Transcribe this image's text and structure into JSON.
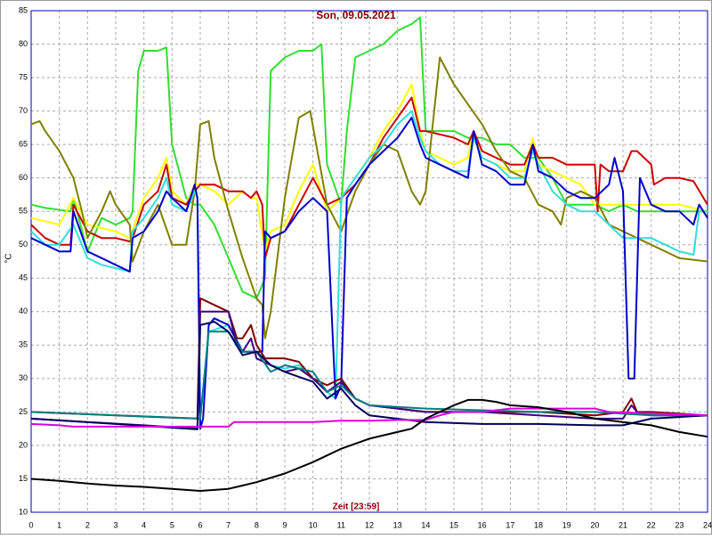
{
  "chart_data": {
    "type": "line",
    "title": "Son, 09.05.2021",
    "xlabel": "Zeit [23:59]",
    "ylabel": "°C",
    "xlim": [
      0,
      24
    ],
    "ylim": [
      10,
      85
    ],
    "grid": true,
    "xticks": [
      0,
      1,
      2,
      3,
      4,
      5,
      6,
      7,
      8,
      9,
      10,
      11,
      12,
      13,
      14,
      15,
      16,
      17,
      18,
      19,
      20,
      21,
      22,
      23,
      24
    ],
    "yticks": [
      10,
      15,
      20,
      25,
      30,
      35,
      40,
      45,
      50,
      55,
      60,
      65,
      70,
      75,
      80,
      85
    ],
    "series": [
      {
        "color": "#33dd33",
        "x": [
          0,
          0.5,
          1.4,
          1.5,
          2,
          2.5,
          3,
          3.5,
          3.6,
          3.8,
          4,
          4.5,
          4.8,
          5,
          5.5,
          5.8,
          6,
          6.5,
          7,
          7.5,
          8,
          8.3,
          8.5,
          9,
          9.5,
          10,
          10.3,
          10.5,
          11,
          11.2,
          11.5,
          12,
          12.5,
          13,
          13.5,
          13.8,
          14,
          14.5,
          15,
          15.5,
          16,
          16.5,
          17,
          17.5,
          18,
          18.5,
          19,
          19.5,
          20,
          20.5,
          21,
          21.5,
          22,
          22.5,
          23,
          23.5,
          24
        ],
        "values": [
          56,
          55.5,
          55,
          57,
          49,
          54,
          53,
          54,
          55,
          76,
          79,
          79,
          79.5,
          65,
          57,
          56,
          56,
          53,
          48,
          43,
          42,
          45,
          76,
          78,
          79,
          79,
          80,
          62,
          56,
          67,
          78,
          79,
          80,
          82,
          83,
          84,
          67,
          67,
          67,
          66,
          66,
          65,
          65,
          63,
          63,
          60,
          56,
          56,
          56,
          55,
          56,
          55,
          55,
          55,
          55,
          55,
          55
        ]
      },
      {
        "color": "#ffff00",
        "x": [
          0,
          1,
          1.5,
          2,
          3,
          3.5,
          4,
          4.5,
          4.8,
          5,
          5.5,
          5.8,
          6,
          6.5,
          7,
          7.5,
          7.8,
          8,
          8.3,
          8.5,
          9,
          9.5,
          10,
          10.5,
          11,
          11.5,
          12,
          12.5,
          13,
          13.5,
          13.8,
          14,
          14.5,
          15,
          15.5,
          15.7,
          16,
          16.5,
          17,
          17.5,
          17.8,
          18,
          18.5,
          19,
          19.5,
          20,
          20.5,
          21,
          21.5,
          22,
          22.5,
          23,
          24
        ],
        "values": [
          54,
          53,
          57,
          53,
          52,
          51,
          57,
          60,
          63,
          58,
          56,
          59,
          59,
          58,
          56,
          58,
          57,
          57,
          49,
          52,
          53,
          58,
          62,
          55,
          57,
          60,
          63,
          67,
          70,
          74,
          67,
          64,
          63,
          62,
          63,
          67,
          63,
          62,
          61,
          61,
          66,
          62,
          61,
          60,
          59,
          56,
          56,
          56,
          56,
          56,
          56,
          56,
          55
        ]
      },
      {
        "color": "#cc0000",
        "x": [
          0,
          0.5,
          1,
          1.4,
          1.5,
          2,
          2.5,
          3,
          3.5,
          3.6,
          4,
          4.5,
          4.8,
          5,
          5.5,
          5.8,
          6,
          6.5,
          7,
          7.5,
          7.8,
          8,
          8.2,
          8.3,
          8.5,
          9,
          9.5,
          10,
          10.5,
          11,
          11.5,
          12,
          12.5,
          13,
          13.5,
          13.8,
          14,
          15,
          15.5,
          15.7,
          16,
          16.5,
          17,
          17.5,
          17.8,
          18,
          18.5,
          19,
          19.5,
          20,
          20.1,
          20.2,
          20.5,
          21,
          21.3,
          21.5,
          22,
          22.1,
          22.5,
          23,
          23.5,
          24
        ],
        "values": [
          53,
          51,
          50,
          50,
          56,
          52,
          51,
          51,
          50.5,
          51,
          56,
          58,
          62,
          57,
          56,
          58,
          59,
          59,
          58,
          58,
          57,
          58,
          56,
          48,
          51,
          52,
          56,
          60,
          56,
          57,
          59,
          62,
          66,
          69,
          72,
          67,
          67,
          66,
          65,
          67,
          64,
          63,
          62,
          62,
          65,
          63,
          63,
          62,
          62,
          62,
          55,
          62,
          61,
          61,
          64,
          64,
          62,
          59,
          60,
          60,
          59.5,
          56
        ]
      },
      {
        "color": "#808000",
        "x": [
          0,
          0.3,
          0.5,
          1,
          1.5,
          1.8,
          2,
          2.5,
          2.8,
          3,
          3.5,
          3.6,
          4,
          4.5,
          5,
          5.5,
          5.8,
          6,
          6.3,
          6.5,
          7,
          7.5,
          8,
          8.2,
          8.3,
          8.5,
          9,
          9.5,
          9.9,
          10.5,
          11,
          11.5,
          12,
          12.5,
          13,
          13.5,
          13.8,
          14,
          14.5,
          15,
          15.5,
          16,
          16.5,
          17,
          17.5,
          18,
          18.5,
          18.8,
          19,
          19.5,
          20,
          20.5,
          21,
          21.5,
          22,
          23,
          24
        ],
        "values": [
          68,
          68.5,
          67,
          64,
          60,
          55,
          51,
          55,
          58,
          56,
          53,
          47.5,
          52,
          56,
          50,
          50,
          58,
          68,
          68.5,
          63,
          55,
          48,
          42,
          41,
          36,
          40,
          57,
          69,
          70,
          56,
          52,
          58,
          62,
          65,
          64,
          58,
          56,
          58,
          78,
          74,
          71,
          68,
          64,
          61,
          60,
          56,
          55,
          53,
          57,
          58,
          57,
          53,
          52,
          51,
          50,
          48,
          47.5
        ]
      },
      {
        "color": "#33dddd",
        "x": [
          0,
          0.5,
          1,
          1.5,
          2,
          2.5,
          3,
          3.5,
          3.6,
          4,
          4.5,
          4.8,
          5,
          5.5,
          5.8,
          5.9,
          6,
          6.3,
          7,
          7.5,
          8,
          8.5,
          9,
          9.5,
          10,
          10.5,
          10.8,
          11,
          11.5,
          12,
          12.5,
          13,
          13.5,
          13.8,
          14,
          14.5,
          15,
          15.5,
          15.7,
          16,
          16.5,
          17,
          17.5,
          17.8,
          18,
          18.5,
          19,
          19.5,
          20,
          20.5,
          21,
          21.5,
          22,
          22.5,
          23,
          23.5,
          23.7,
          24
        ],
        "values": [
          52,
          50,
          50,
          53,
          48,
          47,
          46.5,
          46,
          52,
          54,
          57,
          60,
          56,
          55,
          58,
          57,
          24,
          37,
          38,
          34,
          34,
          32,
          31.5,
          32,
          30,
          28,
          27,
          57,
          60,
          63,
          65,
          68,
          70,
          66,
          64,
          62,
          61,
          61,
          66,
          63,
          62,
          60,
          60,
          64,
          62,
          58,
          56,
          55,
          55,
          53,
          51,
          51,
          51,
          50,
          49,
          48.5,
          55,
          55
        ]
      },
      {
        "color": "#0000cc",
        "x": [
          0,
          0.5,
          1,
          1.4,
          1.5,
          2,
          2.5,
          3,
          3.5,
          3.6,
          4,
          4.5,
          4.8,
          5,
          5.5,
          5.8,
          5.9,
          6,
          6.1,
          6.3,
          6.5,
          7,
          7.5,
          8,
          8.2,
          8.3,
          8.5,
          9,
          9.5,
          10,
          10.5,
          10.8,
          11,
          11.2,
          11.5,
          12,
          12.5,
          13,
          13.5,
          13.8,
          14,
          14.5,
          15,
          15.5,
          15.7,
          16,
          16.5,
          17,
          17.5,
          17.8,
          18,
          18.5,
          19,
          19.5,
          20,
          20.5,
          20.7,
          21,
          21.2,
          21.4,
          21.6,
          22,
          22.5,
          23,
          23.5,
          23.7,
          24
        ],
        "values": [
          51,
          50,
          49,
          49,
          55,
          49,
          48,
          47,
          46,
          51,
          52,
          55,
          58,
          57,
          55,
          59,
          57,
          22.5,
          24,
          38,
          39,
          38,
          34,
          34,
          34,
          52,
          51,
          52,
          55,
          57,
          55,
          27,
          29,
          57,
          59,
          62,
          64,
          66,
          69,
          65,
          63,
          62,
          61,
          60,
          67,
          62,
          61,
          59,
          59,
          65,
          61,
          60,
          58,
          57,
          57,
          59,
          63,
          58,
          30,
          30,
          60,
          56,
          55,
          55,
          53,
          56,
          54
        ]
      },
      {
        "color": "#800000",
        "x": [
          0,
          3,
          5.9,
          6,
          6.5,
          7,
          7.3,
          7.5,
          7.8,
          8,
          8.3,
          8.5,
          9,
          9.5,
          10,
          10.5,
          11,
          11.5,
          12,
          13,
          14,
          16,
          18,
          20,
          21,
          21.3,
          21.5,
          22,
          24
        ],
        "values": [
          25,
          24.5,
          24,
          42,
          41,
          40,
          36,
          36,
          38,
          35,
          33,
          33,
          33,
          32.5,
          30,
          29,
          30,
          27,
          26,
          25.5,
          25,
          25,
          25,
          24.5,
          25,
          27,
          25,
          25,
          24.5
        ]
      },
      {
        "color": "#400080",
        "x": [
          0,
          2,
          4,
          5.9,
          6,
          6.5,
          7,
          7.3,
          7.5,
          7.8,
          8,
          8.5,
          9,
          9.5,
          10,
          10.5,
          11,
          11.5,
          12,
          14,
          16,
          18,
          20,
          21,
          21.3,
          21.5,
          22,
          24
        ],
        "values": [
          24,
          23.5,
          23,
          22.5,
          40,
          40,
          40,
          35,
          34,
          36,
          33,
          32,
          31,
          31.5,
          30,
          28,
          29.5,
          27,
          26,
          25,
          25,
          24.5,
          24,
          24,
          26,
          25,
          24.5,
          24.5
        ]
      },
      {
        "color": "#008080",
        "x": [
          0,
          6,
          6.3,
          7,
          7.5,
          8,
          8.5,
          9,
          10,
          10.5,
          11,
          11.5,
          12,
          14,
          18,
          20,
          22,
          24
        ],
        "values": [
          25,
          24,
          37,
          37,
          34,
          34,
          31,
          32,
          31,
          28,
          29,
          27,
          26,
          25.5,
          25,
          25,
          24.5,
          24.5
        ]
      },
      {
        "color": "#000060",
        "x": [
          0,
          3,
          5.9,
          6,
          6.5,
          7,
          7.5,
          8,
          8.5,
          9,
          10,
          10.5,
          11,
          11.5,
          12,
          14,
          16,
          18,
          20,
          21,
          22,
          24
        ],
        "values": [
          24,
          23.2,
          22.4,
          38,
          38.5,
          37,
          33.5,
          34,
          32,
          31,
          29.5,
          27,
          28.5,
          26,
          24.5,
          23.5,
          23.2,
          23.2,
          23,
          23,
          24,
          24.5
        ]
      },
      {
        "color": "#dd00dd",
        "x": [
          0,
          1,
          1.5,
          3,
          6,
          7,
          7.2,
          9,
          10,
          11,
          12,
          13,
          14,
          14.5,
          15,
          16,
          17,
          18,
          19,
          20,
          20.5,
          24
        ],
        "values": [
          23.2,
          23,
          22.8,
          22.8,
          22.8,
          22.8,
          23.5,
          23.5,
          23.5,
          23.7,
          23.7,
          23.8,
          23.8,
          24.5,
          25,
          25,
          25.5,
          25.5,
          25.5,
          25.5,
          25,
          24.5
        ]
      },
      {
        "color": "#000000",
        "x": [
          0,
          1,
          2,
          3,
          4,
          5,
          6,
          7,
          7.5,
          8,
          9,
          10,
          10.5,
          11,
          12,
          13,
          13.5,
          14,
          14.5,
          15,
          15.5,
          16,
          16.5,
          17,
          18,
          19,
          19.5,
          20,
          21,
          22,
          23,
          24
        ],
        "values": [
          15,
          14.7,
          14.3,
          14,
          13.8,
          13.5,
          13.2,
          13.5,
          14,
          14.5,
          15.8,
          17.5,
          18.5,
          19.5,
          21,
          22,
          22.5,
          24,
          25,
          26,
          26.8,
          26.8,
          26.5,
          26,
          25.7,
          25,
          24.5,
          24,
          23.5,
          23,
          22,
          21.3
        ]
      }
    ]
  }
}
